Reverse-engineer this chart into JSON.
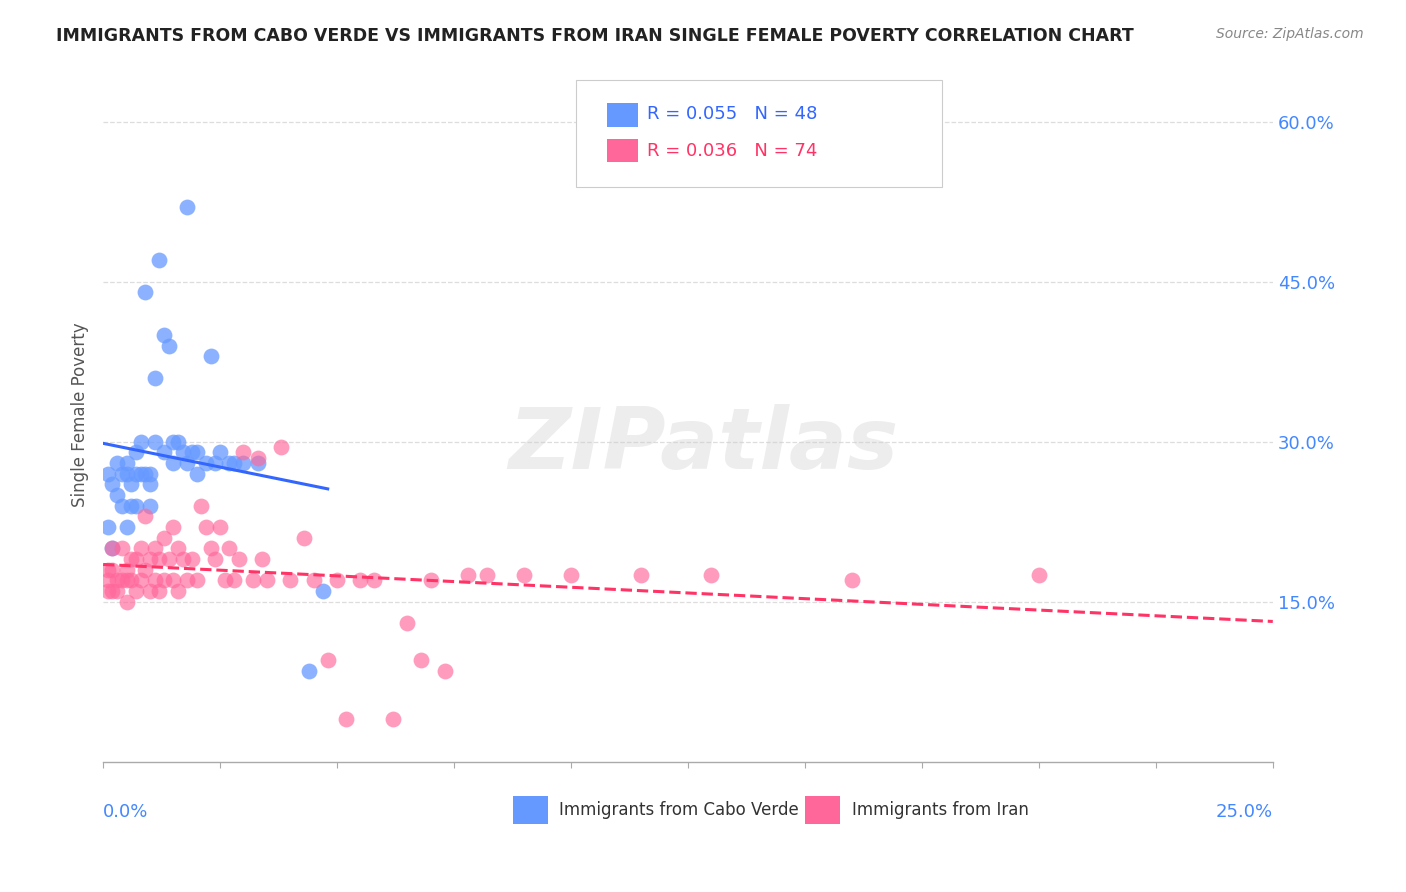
{
  "title": "IMMIGRANTS FROM CABO VERDE VS IMMIGRANTS FROM IRAN SINGLE FEMALE POVERTY CORRELATION CHART",
  "source": "Source: ZipAtlas.com",
  "ylabel": "Single Female Poverty",
  "cabo_verde_label": "Immigrants from Cabo Verde",
  "iran_label": "Immigrants from Iran",
  "legend1_r": "R = 0.055",
  "legend1_n": "N = 48",
  "legend2_r": "R = 0.036",
  "legend2_n": "N = 74",
  "cabo_verde_color": "#6699ff",
  "iran_color": "#ff6699",
  "cabo_verde_trend_color": "#3366ff",
  "iran_trend_color": "#ff3366",
  "ytick_vals": [
    0.15,
    0.3,
    0.45,
    0.6
  ],
  "ytick_labels": [
    "15.0%",
    "30.0%",
    "45.0%",
    "60.0%"
  ],
  "xlim": [
    0.0,
    0.25
  ],
  "ylim": [
    0.0,
    0.65
  ],
  "xmin_label": "0.0%",
  "xmax_label": "25.0%",
  "figsize": [
    14.06,
    8.92
  ],
  "dpi": 100,
  "tick_color": "#4488ff",
  "grid_color": "#dddddd",
  "title_color": "#222222",
  "source_color": "#888888",
  "cabo_verde_x": [
    0.001,
    0.001,
    0.002,
    0.002,
    0.003,
    0.003,
    0.004,
    0.004,
    0.005,
    0.005,
    0.005,
    0.006,
    0.006,
    0.007,
    0.007,
    0.007,
    0.008,
    0.008,
    0.009,
    0.009,
    0.01,
    0.01,
    0.01,
    0.011,
    0.011,
    0.012,
    0.013,
    0.013,
    0.014,
    0.015,
    0.015,
    0.016,
    0.017,
    0.018,
    0.018,
    0.019,
    0.02,
    0.02,
    0.022,
    0.023,
    0.024,
    0.025,
    0.027,
    0.028,
    0.03,
    0.033,
    0.044,
    0.047
  ],
  "cabo_verde_y": [
    0.27,
    0.22,
    0.26,
    0.2,
    0.28,
    0.25,
    0.27,
    0.24,
    0.28,
    0.27,
    0.22,
    0.26,
    0.24,
    0.29,
    0.27,
    0.24,
    0.3,
    0.27,
    0.44,
    0.27,
    0.27,
    0.26,
    0.24,
    0.36,
    0.3,
    0.47,
    0.4,
    0.29,
    0.39,
    0.3,
    0.28,
    0.3,
    0.29,
    0.52,
    0.28,
    0.29,
    0.29,
    0.27,
    0.28,
    0.38,
    0.28,
    0.29,
    0.28,
    0.28,
    0.28,
    0.28,
    0.085,
    0.16
  ],
  "iran_x": [
    0.001,
    0.001,
    0.001,
    0.002,
    0.002,
    0.002,
    0.003,
    0.003,
    0.004,
    0.004,
    0.005,
    0.005,
    0.005,
    0.006,
    0.006,
    0.007,
    0.007,
    0.008,
    0.008,
    0.009,
    0.009,
    0.01,
    0.01,
    0.011,
    0.011,
    0.012,
    0.012,
    0.013,
    0.013,
    0.014,
    0.015,
    0.015,
    0.016,
    0.016,
    0.017,
    0.018,
    0.019,
    0.02,
    0.021,
    0.022,
    0.023,
    0.024,
    0.025,
    0.026,
    0.027,
    0.028,
    0.029,
    0.03,
    0.032,
    0.033,
    0.034,
    0.035,
    0.038,
    0.04,
    0.043,
    0.045,
    0.048,
    0.05,
    0.052,
    0.055,
    0.058,
    0.062,
    0.065,
    0.068,
    0.07,
    0.073,
    0.078,
    0.082,
    0.09,
    0.1,
    0.115,
    0.13,
    0.16,
    0.2
  ],
  "iran_y": [
    0.18,
    0.17,
    0.16,
    0.2,
    0.18,
    0.16,
    0.17,
    0.16,
    0.2,
    0.17,
    0.17,
    0.18,
    0.15,
    0.19,
    0.17,
    0.19,
    0.16,
    0.2,
    0.17,
    0.23,
    0.18,
    0.19,
    0.16,
    0.2,
    0.17,
    0.19,
    0.16,
    0.21,
    0.17,
    0.19,
    0.22,
    0.17,
    0.2,
    0.16,
    0.19,
    0.17,
    0.19,
    0.17,
    0.24,
    0.22,
    0.2,
    0.19,
    0.22,
    0.17,
    0.2,
    0.17,
    0.19,
    0.29,
    0.17,
    0.285,
    0.19,
    0.17,
    0.295,
    0.17,
    0.21,
    0.17,
    0.095,
    0.17,
    0.04,
    0.17,
    0.17,
    0.04,
    0.13,
    0.095,
    0.17,
    0.085,
    0.175,
    0.175,
    0.175,
    0.175,
    0.175,
    0.175,
    0.17,
    0.175
  ]
}
